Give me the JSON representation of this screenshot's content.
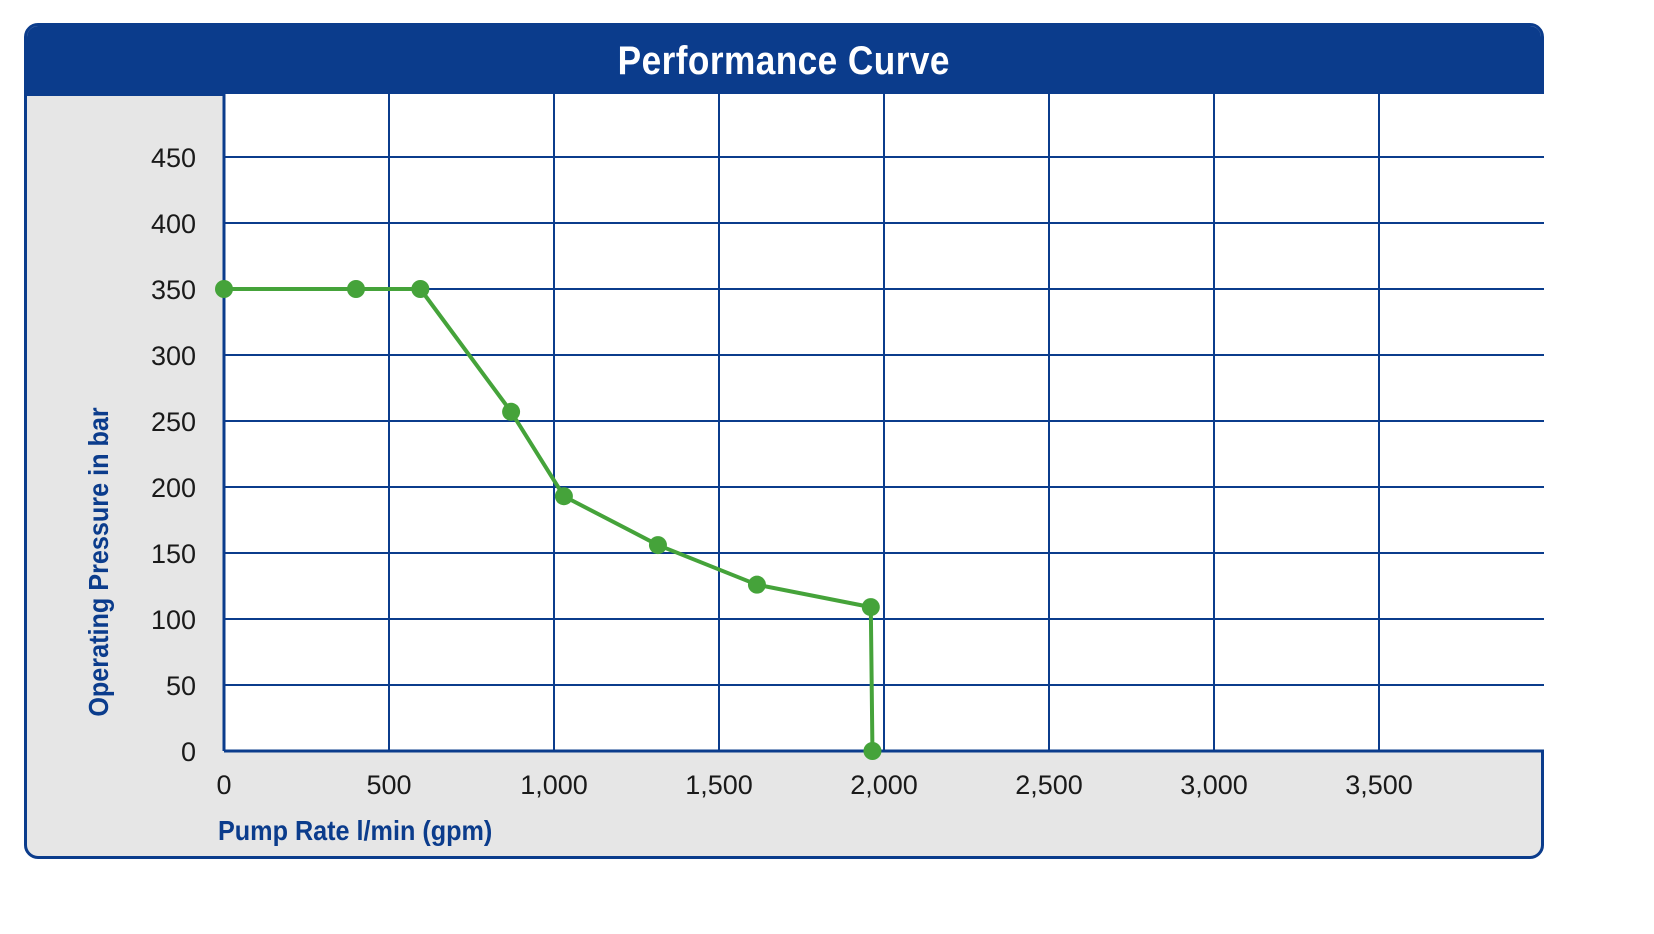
{
  "colors": {
    "frame": "#0b3c8c",
    "grid": "#0b3c8c",
    "plot_bg": "#ffffff",
    "panel_bg": "#e6e6e6",
    "series": "#45a33a"
  },
  "chart_data": {
    "type": "line",
    "title": "Performance Curve",
    "xlabel": "Pump Rate l/min (gpm)",
    "ylabel": "Operating Pressure in bar",
    "xlim": [
      0,
      4000
    ],
    "ylim": [
      0,
      500
    ],
    "x_ticks": [
      0,
      500,
      1000,
      1500,
      2000,
      2500,
      3000,
      3500
    ],
    "x_tick_labels": [
      "0",
      "500",
      "1,000",
      "1,500",
      "2,000",
      "2,500",
      "3,000",
      "3,500"
    ],
    "y_ticks": [
      0,
      50,
      100,
      150,
      200,
      250,
      300,
      350,
      400,
      450
    ],
    "y_tick_labels": [
      "0",
      "50",
      "100",
      "150",
      "200",
      "250",
      "300",
      "350",
      "400",
      "450"
    ],
    "grid": true,
    "series": [
      {
        "x": [
          0,
          400,
          595,
          870,
          1030,
          1315,
          1615,
          1960,
          1965
        ],
        "y": [
          350,
          350,
          350,
          257,
          193,
          156,
          126,
          109,
          0
        ]
      }
    ]
  }
}
